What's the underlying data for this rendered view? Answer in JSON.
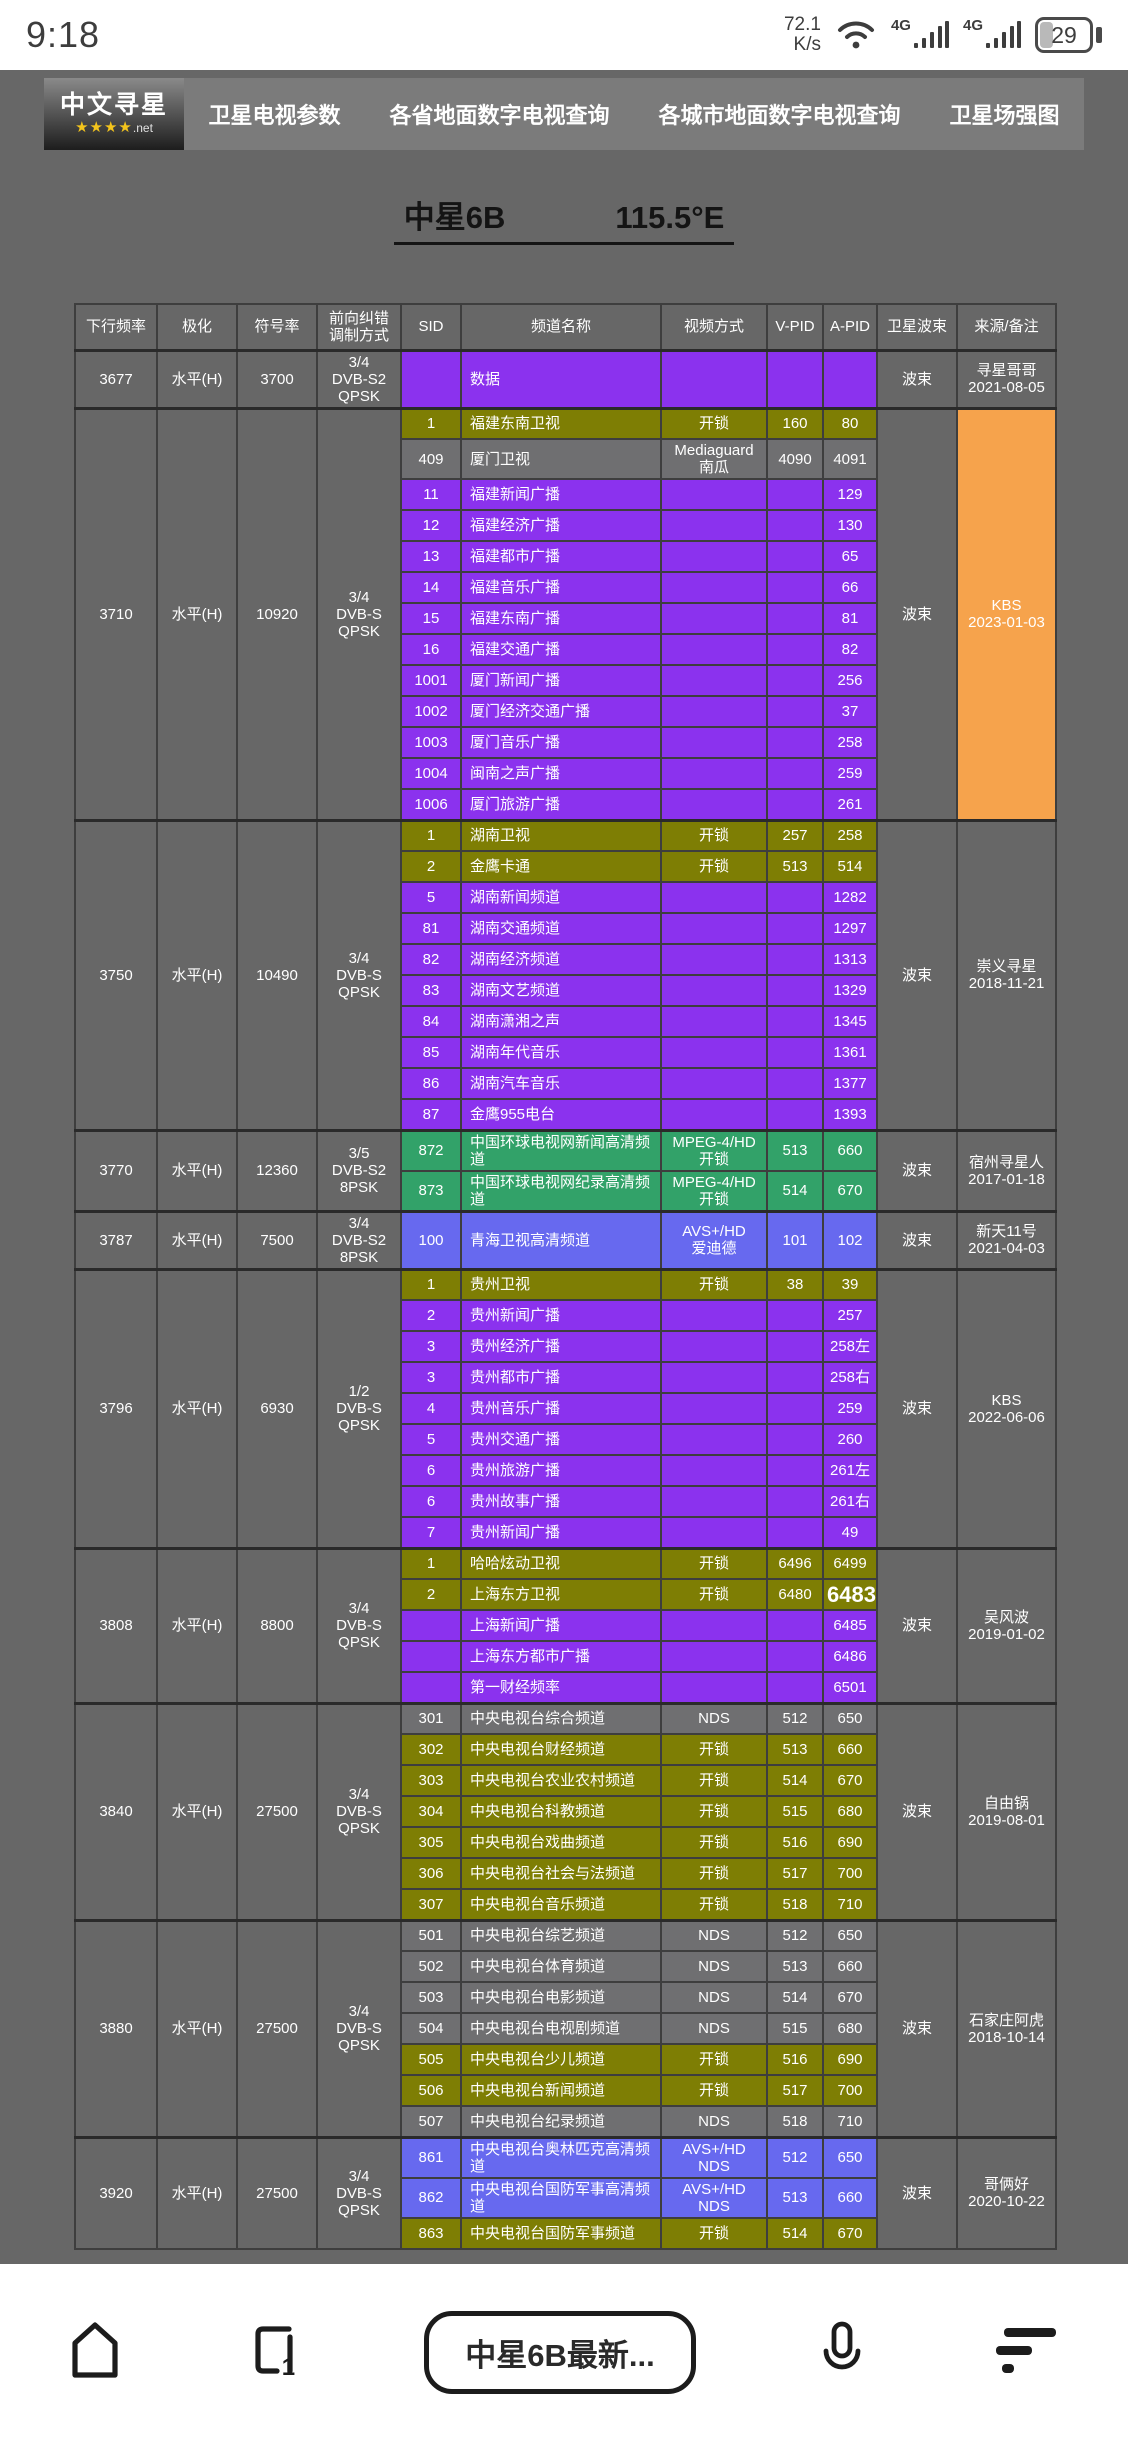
{
  "status_bar": {
    "time": "9:18",
    "net_speed_value": "72.1",
    "net_speed_unit": "K/s",
    "net_4g": "4G",
    "battery": "29"
  },
  "nav": {
    "logo_line1": "中文寻星",
    "logo_stars": "★★★★",
    "logo_net": ".net",
    "items": [
      {
        "label": "卫星电视参数"
      },
      {
        "label": "各省地面数字电视查询"
      },
      {
        "label": "各城市地面数字电视查询"
      },
      {
        "label": "卫星场强图"
      }
    ]
  },
  "title": {
    "name": "中星6B",
    "position": "115.5°E"
  },
  "colors": {
    "purple": "#8B32EE",
    "olive": "#7E7E04",
    "gray": "#6F6F71",
    "green": "#32A269",
    "blue": "#6769EF",
    "orange": "#F6A34C",
    "background": "#676767",
    "navbar": "#7B7B7B",
    "border": "#3E3E3E"
  },
  "icons": {
    "wifi": "wifi-arcs",
    "signal": "ascending-bars",
    "battery": "rounded-rect-29",
    "home": "house-outline",
    "tabs": "rounded-square-1",
    "microphone": "mic-outline",
    "menu": "stacked-bars"
  },
  "table": {
    "headers": [
      "下行频率",
      "极化",
      "符号率",
      "前向纠错\n调制方式",
      "SID",
      "频道名称",
      "视频方式",
      "V-PID",
      "A-PID",
      "卫星波束",
      "来源/备注"
    ],
    "groups": [
      {
        "freq": "3677",
        "pol": "水平(H)",
        "symbol_rate": "3700",
        "fec": "3/4\nDVB-S2\nQPSK",
        "beam": "波束",
        "source": "寻星哥哥\n2021-08-05",
        "source_style": "gray",
        "channels": [
          {
            "sid": "",
            "name": "数据",
            "video": "",
            "vpid": "",
            "apid": "",
            "color": "purple",
            "tall": true
          }
        ]
      },
      {
        "freq": "3710",
        "pol": "水平(H)",
        "symbol_rate": "10920",
        "fec": "3/4\nDVB-S\nQPSK",
        "beam": "波束",
        "source": "KBS\n2023-01-03",
        "source_style": "orange",
        "channels": [
          {
            "sid": "1",
            "name": "福建东南卫视",
            "video": "开锁",
            "vpid": "160",
            "apid": "80",
            "color": "olive"
          },
          {
            "sid": "409",
            "name": "厦门卫视",
            "video": "Mediaguard\n南瓜",
            "vpid": "4090",
            "apid": "4091",
            "color": "gray"
          },
          {
            "sid": "11",
            "name": "福建新闻广播",
            "video": "",
            "vpid": "",
            "apid": "129",
            "color": "purple"
          },
          {
            "sid": "12",
            "name": "福建经济广播",
            "video": "",
            "vpid": "",
            "apid": "130",
            "color": "purple"
          },
          {
            "sid": "13",
            "name": "福建都市广播",
            "video": "",
            "vpid": "",
            "apid": "65",
            "color": "purple"
          },
          {
            "sid": "14",
            "name": "福建音乐广播",
            "video": "",
            "vpid": "",
            "apid": "66",
            "color": "purple"
          },
          {
            "sid": "15",
            "name": "福建东南广播",
            "video": "",
            "vpid": "",
            "apid": "81",
            "color": "purple"
          },
          {
            "sid": "16",
            "name": "福建交通广播",
            "video": "",
            "vpid": "",
            "apid": "82",
            "color": "purple"
          },
          {
            "sid": "1001",
            "name": "厦门新闻广播",
            "video": "",
            "vpid": "",
            "apid": "256",
            "color": "purple"
          },
          {
            "sid": "1002",
            "name": "厦门经济交通广播",
            "video": "",
            "vpid": "",
            "apid": "37",
            "color": "purple"
          },
          {
            "sid": "1003",
            "name": "厦门音乐广播",
            "video": "",
            "vpid": "",
            "apid": "258",
            "color": "purple"
          },
          {
            "sid": "1004",
            "name": "闽南之声广播",
            "video": "",
            "vpid": "",
            "apid": "259",
            "color": "purple"
          },
          {
            "sid": "1006",
            "name": "厦门旅游广播",
            "video": "",
            "vpid": "",
            "apid": "261",
            "color": "purple"
          }
        ]
      },
      {
        "freq": "3750",
        "pol": "水平(H)",
        "symbol_rate": "10490",
        "fec": "3/4\nDVB-S\nQPSK",
        "beam": "波束",
        "source": "崇义寻星\n2018-11-21",
        "source_style": "gray",
        "channels": [
          {
            "sid": "1",
            "name": "湖南卫视",
            "video": "开锁",
            "vpid": "257",
            "apid": "258",
            "color": "olive"
          },
          {
            "sid": "2",
            "name": "金鹰卡通",
            "video": "开锁",
            "vpid": "513",
            "apid": "514",
            "color": "olive"
          },
          {
            "sid": "5",
            "name": "湖南新闻频道",
            "video": "",
            "vpid": "",
            "apid": "1282",
            "color": "purple"
          },
          {
            "sid": "81",
            "name": "湖南交通频道",
            "video": "",
            "vpid": "",
            "apid": "1297",
            "color": "purple"
          },
          {
            "sid": "82",
            "name": "湖南经济频道",
            "video": "",
            "vpid": "",
            "apid": "1313",
            "color": "purple"
          },
          {
            "sid": "83",
            "name": "湖南文艺频道",
            "video": "",
            "vpid": "",
            "apid": "1329",
            "color": "purple"
          },
          {
            "sid": "84",
            "name": "湖南潇湘之声",
            "video": "",
            "vpid": "",
            "apid": "1345",
            "color": "purple"
          },
          {
            "sid": "85",
            "name": "湖南年代音乐",
            "video": "",
            "vpid": "",
            "apid": "1361",
            "color": "purple"
          },
          {
            "sid": "86",
            "name": "湖南汽车音乐",
            "video": "",
            "vpid": "",
            "apid": "1377",
            "color": "purple"
          },
          {
            "sid": "87",
            "name": "金鹰955电台",
            "video": "",
            "vpid": "",
            "apid": "1393",
            "color": "purple"
          }
        ]
      },
      {
        "freq": "3770",
        "pol": "水平(H)",
        "symbol_rate": "12360",
        "fec": "3/5\nDVB-S2\n8PSK",
        "beam": "波束",
        "source": "宿州寻星人\n2017-01-18",
        "source_style": "gray",
        "channels": [
          {
            "sid": "872",
            "name": "中国环球电视网新闻高清频道",
            "video": "MPEG-4/HD\n开锁",
            "vpid": "513",
            "apid": "660",
            "color": "green"
          },
          {
            "sid": "873",
            "name": "中国环球电视网纪录高清频道",
            "video": "MPEG-4/HD\n开锁",
            "vpid": "514",
            "apid": "670",
            "color": "green"
          }
        ]
      },
      {
        "freq": "3787",
        "pol": "水平(H)",
        "symbol_rate": "7500",
        "fec": "3/4\nDVB-S2\n8PSK",
        "beam": "波束",
        "source": "新天11号\n2021-04-03",
        "source_style": "gray",
        "channels": [
          {
            "sid": "100",
            "name": "青海卫视高清频道",
            "video": "AVS+/HD\n爱迪德",
            "vpid": "101",
            "apid": "102",
            "color": "blue"
          }
        ]
      },
      {
        "freq": "3796",
        "pol": "水平(H)",
        "symbol_rate": "6930",
        "fec": "1/2\nDVB-S\nQPSK",
        "beam": "波束",
        "source": "KBS\n2022-06-06",
        "source_style": "gray",
        "channels": [
          {
            "sid": "1",
            "name": "贵州卫视",
            "video": "开锁",
            "vpid": "38",
            "apid": "39",
            "color": "olive"
          },
          {
            "sid": "2",
            "name": "贵州新闻广播",
            "video": "",
            "vpid": "",
            "apid": "257",
            "color": "purple"
          },
          {
            "sid": "3",
            "name": "贵州经济广播",
            "video": "",
            "vpid": "",
            "apid": "258左",
            "color": "purple"
          },
          {
            "sid": "3",
            "name": "贵州都市广播",
            "video": "",
            "vpid": "",
            "apid": "258右",
            "color": "purple"
          },
          {
            "sid": "4",
            "name": "贵州音乐广播",
            "video": "",
            "vpid": "",
            "apid": "259",
            "color": "purple"
          },
          {
            "sid": "5",
            "name": "贵州交通广播",
            "video": "",
            "vpid": "",
            "apid": "260",
            "color": "purple"
          },
          {
            "sid": "6",
            "name": "贵州旅游广播",
            "video": "",
            "vpid": "",
            "apid": "261左",
            "color": "purple"
          },
          {
            "sid": "6",
            "name": "贵州故事广播",
            "video": "",
            "vpid": "",
            "apid": "261右",
            "color": "purple"
          },
          {
            "sid": "7",
            "name": "贵州新闻广播",
            "video": "",
            "vpid": "",
            "apid": "49",
            "color": "purple"
          }
        ]
      },
      {
        "freq": "3808",
        "pol": "水平(H)",
        "symbol_rate": "8800",
        "fec": "3/4\nDVB-S\nQPSK",
        "beam": "波束",
        "source": "吴风波\n2019-01-02",
        "source_style": "gray",
        "channels": [
          {
            "sid": "1",
            "name": "哈哈炫动卫视",
            "video": "开锁",
            "vpid": "6496",
            "apid": "6499",
            "color": "olive"
          },
          {
            "sid": "2",
            "name": "上海东方卫视",
            "video": "开锁",
            "vpid": "6480",
            "apid": "6483",
            "apid_big": true,
            "color": "olive"
          },
          {
            "sid": "",
            "name": "上海新闻广播",
            "video": "",
            "vpid": "",
            "apid": "6485",
            "color": "purple"
          },
          {
            "sid": "",
            "name": "上海东方都市广播",
            "video": "",
            "vpid": "",
            "apid": "6486",
            "color": "purple"
          },
          {
            "sid": "",
            "name": "第一财经频率",
            "video": "",
            "vpid": "",
            "apid": "6501",
            "color": "purple"
          }
        ]
      },
      {
        "freq": "3840",
        "pol": "水平(H)",
        "symbol_rate": "27500",
        "fec": "3/4\nDVB-S\nQPSK",
        "beam": "波束",
        "source": "自由锅\n2019-08-01",
        "source_style": "gray",
        "channels": [
          {
            "sid": "301",
            "name": "中央电视台综合频道",
            "video": "NDS",
            "vpid": "512",
            "apid": "650",
            "color": "gray"
          },
          {
            "sid": "302",
            "name": "中央电视台财经频道",
            "video": "开锁",
            "vpid": "513",
            "apid": "660",
            "color": "olive"
          },
          {
            "sid": "303",
            "name": "中央电视台农业农村频道",
            "video": "开锁",
            "vpid": "514",
            "apid": "670",
            "color": "olive"
          },
          {
            "sid": "304",
            "name": "中央电视台科教频道",
            "video": "开锁",
            "vpid": "515",
            "apid": "680",
            "color": "olive"
          },
          {
            "sid": "305",
            "name": "中央电视台戏曲频道",
            "video": "开锁",
            "vpid": "516",
            "apid": "690",
            "color": "olive"
          },
          {
            "sid": "306",
            "name": "中央电视台社会与法频道",
            "video": "开锁",
            "vpid": "517",
            "apid": "700",
            "color": "olive"
          },
          {
            "sid": "307",
            "name": "中央电视台音乐频道",
            "video": "开锁",
            "vpid": "518",
            "apid": "710",
            "color": "olive"
          }
        ]
      },
      {
        "freq": "3880",
        "pol": "水平(H)",
        "symbol_rate": "27500",
        "fec": "3/4\nDVB-S\nQPSK",
        "beam": "波束",
        "source": "石家庄阿虎\n2018-10-14",
        "source_style": "gray",
        "channels": [
          {
            "sid": "501",
            "name": "中央电视台综艺频道",
            "video": "NDS",
            "vpid": "512",
            "apid": "650",
            "color": "gray"
          },
          {
            "sid": "502",
            "name": "中央电视台体育频道",
            "video": "NDS",
            "vpid": "513",
            "apid": "660",
            "color": "gray"
          },
          {
            "sid": "503",
            "name": "中央电视台电影频道",
            "video": "NDS",
            "vpid": "514",
            "apid": "670",
            "color": "gray"
          },
          {
            "sid": "504",
            "name": "中央电视台电视剧频道",
            "video": "NDS",
            "vpid": "515",
            "apid": "680",
            "color": "gray"
          },
          {
            "sid": "505",
            "name": "中央电视台少儿频道",
            "video": "开锁",
            "vpid": "516",
            "apid": "690",
            "color": "olive"
          },
          {
            "sid": "506",
            "name": "中央电视台新闻频道",
            "video": "开锁",
            "vpid": "517",
            "apid": "700",
            "color": "olive"
          },
          {
            "sid": "507",
            "name": "中央电视台纪录频道",
            "video": "NDS",
            "vpid": "518",
            "apid": "710",
            "color": "gray"
          }
        ]
      },
      {
        "freq": "3920",
        "pol": "水平(H)",
        "symbol_rate": "27500",
        "fec": "3/4\nDVB-S\nQPSK",
        "beam": "波束",
        "source": "哥俩好\n2020-10-22",
        "source_style": "gray",
        "channels": [
          {
            "sid": "861",
            "name": "中央电视台奥林匹克高清频道",
            "video": "AVS+/HD\nNDS",
            "vpid": "512",
            "apid": "650",
            "color": "blue"
          },
          {
            "sid": "862",
            "name": "中央电视台国防军事高清频道",
            "video": "AVS+/HD\nNDS",
            "vpid": "513",
            "apid": "660",
            "color": "blue"
          },
          {
            "sid": "863",
            "name": "中央电视台国防军事频道",
            "video": "开锁",
            "vpid": "514",
            "apid": "670",
            "color": "olive"
          }
        ]
      }
    ]
  },
  "toolbar": {
    "search_text": "中星6B最新...",
    "tab_count": "1"
  }
}
